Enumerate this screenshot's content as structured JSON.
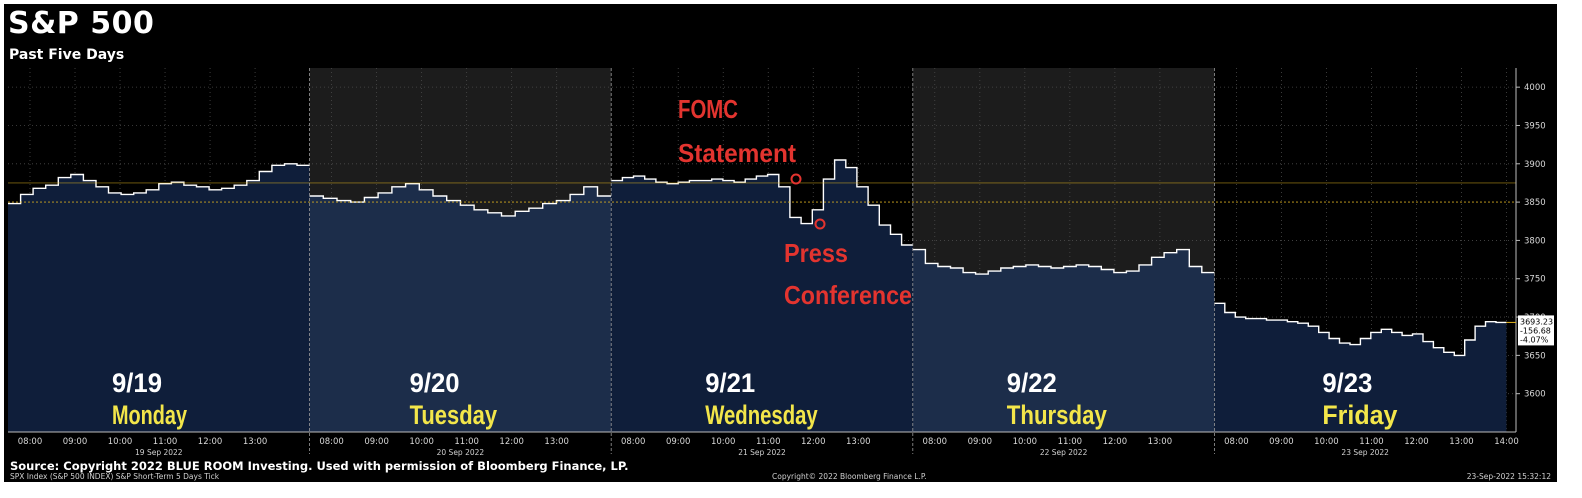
{
  "chart_data": {
    "type": "area",
    "title": "S&P 500",
    "subtitle": "Past Five Days",
    "ylim": [
      3550,
      4025
    ],
    "y_ticks": [
      3600,
      3650,
      3700,
      3750,
      3800,
      3850,
      3900,
      3950,
      4000
    ],
    "x_ticks": [
      "08:00",
      "09:00",
      "10:00",
      "11:00",
      "12:00",
      "13:00",
      "08:00",
      "09:00",
      "10:00",
      "11:00",
      "12:00",
      "13:00",
      "08:00",
      "09:00",
      "10:00",
      "11:00",
      "12:00",
      "13:00",
      "08:00",
      "09:00",
      "10:00",
      "11:00",
      "12:00",
      "13:00",
      "08:00",
      "09:00",
      "10:00",
      "11:00",
      "12:00",
      "13:00",
      "14:00"
    ],
    "days": [
      {
        "date_label": "19 Sep 2022",
        "big_date": "9/19",
        "weekday": "Monday",
        "shaded": false
      },
      {
        "date_label": "20 Sep 2022",
        "big_date": "9/20",
        "weekday": "Tuesday",
        "shaded": true
      },
      {
        "date_label": "21 Sep 2022",
        "big_date": "9/21",
        "weekday": "Wednesday",
        "shaded": false
      },
      {
        "date_label": "22 Sep 2022",
        "big_date": "9/22",
        "weekday": "Thursday",
        "shaded": true
      },
      {
        "date_label": "23 Sep 2022",
        "big_date": "9/23",
        "weekday": "Friday",
        "shaded": false
      }
    ],
    "series": [
      {
        "values": [
          [
            3848,
            3860,
            3868,
            3872,
            3882,
            3886,
            3878,
            3870,
            3862,
            3860,
            3862,
            3866,
            3874,
            3876,
            3872,
            3870,
            3866,
            3868,
            3872,
            3878,
            3890,
            3898,
            3900,
            3898
          ],
          [
            3858,
            3855,
            3852,
            3850,
            3856,
            3862,
            3870,
            3874,
            3866,
            3858,
            3852,
            3846,
            3840,
            3836,
            3832,
            3838,
            3842,
            3848,
            3852,
            3860,
            3870,
            3858
          ],
          [
            3878,
            3882,
            3884,
            3880,
            3876,
            3874,
            3876,
            3878,
            3878,
            3880,
            3878,
            3876,
            3880,
            3884,
            3886,
            3870,
            3830,
            3822,
            3840,
            3880,
            3905,
            3895,
            3870,
            3846,
            3820,
            3808,
            3794
          ],
          [
            3788,
            3770,
            3766,
            3764,
            3758,
            3756,
            3760,
            3764,
            3766,
            3768,
            3766,
            3764,
            3766,
            3768,
            3766,
            3762,
            3758,
            3760,
            3768,
            3778,
            3784,
            3788,
            3766,
            3758
          ],
          [
            3718,
            3706,
            3700,
            3698,
            3698,
            3696,
            3696,
            3694,
            3692,
            3688,
            3680,
            3672,
            3666,
            3664,
            3672,
            3680,
            3684,
            3680,
            3676,
            3678,
            3668,
            3660,
            3654,
            3650,
            3670,
            3688,
            3694,
            3693
          ]
        ]
      }
    ],
    "reference_lines": [
      {
        "value": 3875,
        "color": "#e3b51e"
      },
      {
        "value": 3850,
        "color": "#e3b51e"
      }
    ],
    "annotations": [
      {
        "lines": [
          "FOMC",
          "Statement"
        ],
        "color": "#e3342f"
      },
      {
        "lines": [
          "Press",
          "Conference"
        ],
        "color": "#e3342f"
      }
    ],
    "last_price": "3693.23",
    "change": "-156.68",
    "change_pct": "-4.07%",
    "grid": true
  },
  "source": "Source: Copyright 2022 BLUE ROOM Investing. Used with permission of Bloomberg Finance, LP.",
  "footer": {
    "left": "SPX Index (S&P 500 INDEX) S&P Short-Term 5 Days  Tick",
    "center": "Copyright© 2022 Bloomberg Finance L.P.",
    "right": "23-Sep-2022 15:32:12"
  },
  "colors": {
    "weekday_yellow": "#f3e64a",
    "annotation_red": "#e3342f",
    "area_fill": "#0f1e3a",
    "area_fill_shaded": "#1c2d4a",
    "line": "#ffffff"
  }
}
